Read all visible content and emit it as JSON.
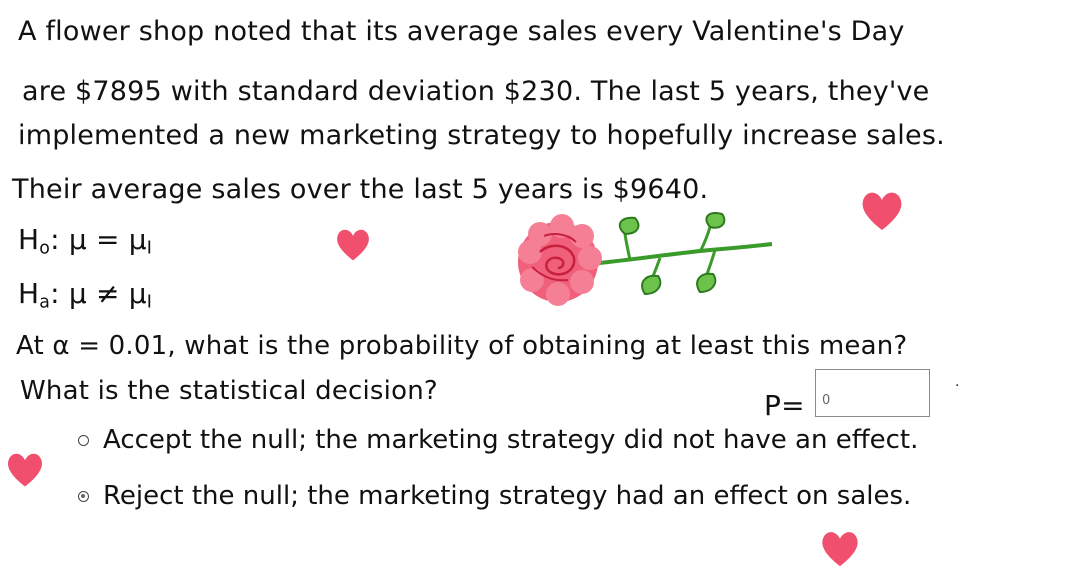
{
  "problem": {
    "line1": "A flower shop noted that its average sales every Valentine's Day",
    "line2": "are $7895 with standard deviation $230. The last 5 years, they've",
    "line3": "implemented a new marketing strategy to hopefully increase sales.",
    "line4": "Their average sales over the last 5 years is $9640."
  },
  "hypotheses": {
    "null_prefix": "H",
    "null_sub": "o",
    "null_rest": ": μ = μ",
    "null_end_sub": "I",
    "alt_prefix": "H",
    "alt_sub": "a",
    "alt_rest": ": μ ≠ μ",
    "alt_end_sub": "I"
  },
  "questions": {
    "q1": "At α = 0.01, what is the probability of obtaining at least this mean?",
    "q2": "What is the statistical decision?",
    "p_label": "P=",
    "p_value": "0"
  },
  "options": [
    {
      "label": "Accept the null; the marketing strategy did not have an effect.",
      "selected": false
    },
    {
      "label": "Reject the null; the marketing strategy had an effect on sales.",
      "selected": true
    }
  ],
  "colors": {
    "heart": "#f0506e",
    "rose": "#f0607a",
    "rose_dark": "#c8203e",
    "stem": "#3a9a2a",
    "leaf": "#6cc24a"
  }
}
